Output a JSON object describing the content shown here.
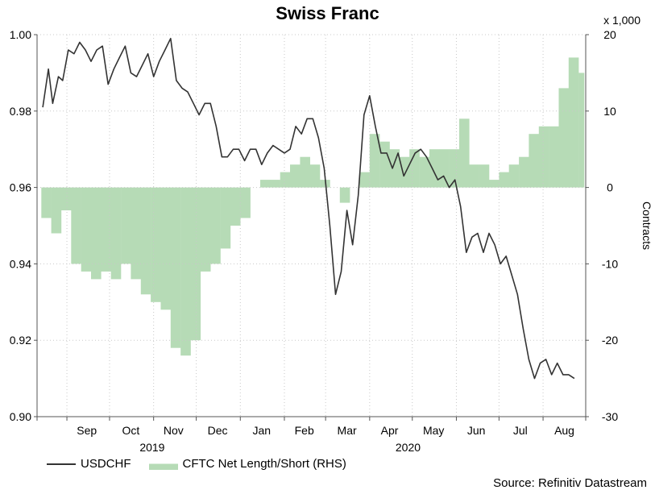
{
  "title": "Swiss Franc",
  "multiplier_label": "x 1,000",
  "source": "Source: Refinitiv Datastream",
  "legend": {
    "line_label": "USDCHF",
    "area_label": "CFTC Net Length/Short (RHS)"
  },
  "colors": {
    "line": "#333333",
    "area": "#b6dbb6",
    "grid": "#c8c8c8"
  },
  "chart_data": {
    "type": "line",
    "title": "Swiss Franc",
    "xlabel": "",
    "ylabel": "",
    "y2label": "Contracts",
    "ylim": [
      0.9,
      1.0
    ],
    "y2lim": [
      -30,
      20
    ],
    "y_ticks": [
      "0.90",
      "0.92",
      "0.94",
      "0.96",
      "0.98",
      "1.00"
    ],
    "y2_ticks": [
      "-30",
      "-20",
      "-10",
      "0",
      "10",
      "20"
    ],
    "x_ticks": [
      "Sep",
      "Oct",
      "Nov",
      "Dec",
      "Jan",
      "Feb",
      "Mar",
      "Apr",
      "May",
      "Jun",
      "Jul",
      "Aug"
    ],
    "year_labels": [
      "2019",
      "2020"
    ],
    "grid": true,
    "legend_position": "bottom-left",
    "series": [
      {
        "name": "USDCHF",
        "axis": "left",
        "style": "line",
        "x": [
          "2019-08-15",
          "2019-08-19",
          "2019-08-22",
          "2019-08-26",
          "2019-08-29",
          "2019-09-02",
          "2019-09-06",
          "2019-09-10",
          "2019-09-14",
          "2019-09-18",
          "2019-09-22",
          "2019-09-26",
          "2019-09-30",
          "2019-10-04",
          "2019-10-08",
          "2019-10-12",
          "2019-10-16",
          "2019-10-20",
          "2019-10-24",
          "2019-10-28",
          "2019-11-01",
          "2019-11-05",
          "2019-11-09",
          "2019-11-13",
          "2019-11-17",
          "2019-11-21",
          "2019-11-25",
          "2019-11-29",
          "2019-12-03",
          "2019-12-07",
          "2019-12-11",
          "2019-12-15",
          "2019-12-19",
          "2019-12-23",
          "2019-12-27",
          "2019-12-31",
          "2020-01-04",
          "2020-01-08",
          "2020-01-12",
          "2020-01-16",
          "2020-01-20",
          "2020-01-24",
          "2020-01-28",
          "2020-02-01",
          "2020-02-05",
          "2020-02-09",
          "2020-02-13",
          "2020-02-17",
          "2020-02-21",
          "2020-02-25",
          "2020-02-29",
          "2020-03-04",
          "2020-03-08",
          "2020-03-12",
          "2020-03-16",
          "2020-03-20",
          "2020-03-24",
          "2020-03-28",
          "2020-04-01",
          "2020-04-05",
          "2020-04-09",
          "2020-04-13",
          "2020-04-17",
          "2020-04-21",
          "2020-04-25",
          "2020-04-29",
          "2020-05-03",
          "2020-05-07",
          "2020-05-11",
          "2020-05-15",
          "2020-05-19",
          "2020-05-23",
          "2020-05-27",
          "2020-05-31",
          "2020-06-04",
          "2020-06-08",
          "2020-06-12",
          "2020-06-16",
          "2020-06-20",
          "2020-06-24",
          "2020-06-28",
          "2020-07-02",
          "2020-07-06",
          "2020-07-10",
          "2020-07-14",
          "2020-07-18",
          "2020-07-22",
          "2020-07-26",
          "2020-07-30",
          "2020-08-03",
          "2020-08-07",
          "2020-08-11",
          "2020-08-15",
          "2020-08-19",
          "2020-08-23"
        ],
        "values": [
          0.981,
          0.991,
          0.982,
          0.989,
          0.988,
          0.996,
          0.995,
          0.998,
          0.996,
          0.993,
          0.996,
          0.997,
          0.987,
          0.991,
          0.994,
          0.997,
          0.99,
          0.989,
          0.992,
          0.995,
          0.989,
          0.993,
          0.996,
          0.999,
          0.988,
          0.986,
          0.985,
          0.982,
          0.979,
          0.982,
          0.982,
          0.976,
          0.968,
          0.968,
          0.97,
          0.97,
          0.967,
          0.97,
          0.97,
          0.966,
          0.969,
          0.971,
          0.97,
          0.969,
          0.97,
          0.976,
          0.974,
          0.978,
          0.978,
          0.973,
          0.965,
          0.95,
          0.932,
          0.938,
          0.954,
          0.945,
          0.958,
          0.979,
          0.984,
          0.976,
          0.969,
          0.969,
          0.965,
          0.969,
          0.963,
          0.966,
          0.969,
          0.97,
          0.968,
          0.965,
          0.962,
          0.963,
          0.96,
          0.962,
          0.955,
          0.943,
          0.947,
          0.948,
          0.943,
          0.948,
          0.945,
          0.94,
          0.942,
          0.937,
          0.932,
          0.923,
          0.915,
          0.91,
          0.914,
          0.915,
          0.911,
          0.914,
          0.911,
          0.911,
          0.91
        ]
      },
      {
        "name": "CFTC Net Length/Short (RHS)",
        "axis": "right",
        "style": "area",
        "x": [
          "2019-08-14",
          "2019-08-21",
          "2019-08-28",
          "2019-09-04",
          "2019-09-11",
          "2019-09-18",
          "2019-09-25",
          "2019-10-02",
          "2019-10-09",
          "2019-10-16",
          "2019-10-23",
          "2019-10-30",
          "2019-11-06",
          "2019-11-13",
          "2019-11-20",
          "2019-11-27",
          "2019-12-04",
          "2019-12-11",
          "2019-12-18",
          "2019-12-25",
          "2020-01-01",
          "2020-01-08",
          "2020-01-15",
          "2020-01-22",
          "2020-01-29",
          "2020-02-05",
          "2020-02-12",
          "2020-02-19",
          "2020-02-26",
          "2020-03-04",
          "2020-03-11",
          "2020-03-18",
          "2020-03-25",
          "2020-04-01",
          "2020-04-08",
          "2020-04-15",
          "2020-04-22",
          "2020-04-29",
          "2020-05-06",
          "2020-05-13",
          "2020-05-20",
          "2020-05-27",
          "2020-06-03",
          "2020-06-10",
          "2020-06-17",
          "2020-06-24",
          "2020-07-01",
          "2020-07-08",
          "2020-07-15",
          "2020-07-22",
          "2020-07-29",
          "2020-08-05",
          "2020-08-12",
          "2020-08-19",
          "2020-08-26"
        ],
        "values": [
          -4,
          -6,
          -3,
          -10,
          -11,
          -12,
          -11,
          -12,
          -10,
          -12,
          -14,
          -15,
          -16,
          -21,
          -22,
          -20,
          -11,
          -10,
          -8,
          -5,
          -4,
          0,
          1,
          1,
          2,
          3,
          4,
          3,
          1,
          0,
          -2,
          0,
          2,
          7,
          6,
          5,
          4,
          5,
          4,
          5,
          5,
          5,
          9,
          3,
          3,
          1,
          2,
          3,
          4,
          7,
          8,
          8,
          13,
          17,
          15
        ]
      }
    ]
  }
}
